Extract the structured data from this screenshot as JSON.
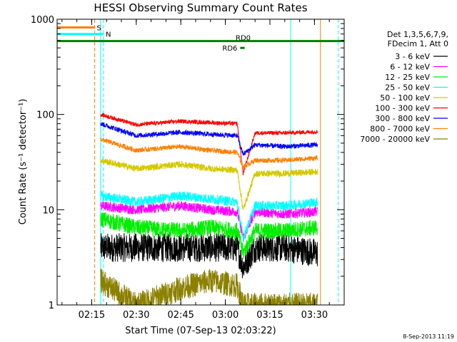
{
  "chart_data": {
    "type": "line",
    "title": "HESSI Observing Summary Count Rates",
    "xlabel": "Start Time (07-Sep-13 02:03:22)",
    "ylabel": "Count Rate (s⁻¹ detector⁻¹)",
    "yscale": "log",
    "ylim": [
      1,
      1000
    ],
    "xlim": [
      "02:03:22",
      "03:40:00"
    ],
    "y_ticks": [
      "1",
      "10",
      "100",
      "1000"
    ],
    "x_ticks": [
      "02:15",
      "02:30",
      "02:45",
      "03:00",
      "03:15",
      "03:30"
    ],
    "footer": "8-Sep-2013 11:19",
    "legend": {
      "placement": "right",
      "header": [
        "Det 1,3,5,6,7,9,",
        "FDecim 1, Att 0"
      ],
      "entries": [
        {
          "label": "3 - 6 keV",
          "color": "#000000"
        },
        {
          "label": "6 - 12 keV",
          "color": "#ff00ff"
        },
        {
          "label": "12 - 25 keV",
          "color": "#00ee00"
        },
        {
          "label": "25 - 50 keV",
          "color": "#00ffff"
        },
        {
          "label": "50 - 100 keV",
          "color": "#d4c800"
        },
        {
          "label": "100 - 300 keV",
          "color": "#ff0000"
        },
        {
          "label": "300 - 800 keV",
          "color": "#0000ff"
        },
        {
          "label": "800 - 7000 keV",
          "color": "#ff8000"
        },
        {
          "label": "7000 - 20000 keV",
          "color": "#8b8000"
        }
      ]
    },
    "flags": [
      {
        "label": "S",
        "color": "#ff8000",
        "y": 820,
        "x": [
          "02:03:22",
          "02:16:00"
        ]
      },
      {
        "label": "N",
        "color": "#00ffff",
        "y": 700,
        "x": [
          "02:03:22",
          "02:19:00"
        ]
      },
      {
        "label": "RD0",
        "color": "#008000",
        "y": 590,
        "x": [
          "02:03:22",
          "03:40:00"
        ]
      },
      {
        "label": "RD6",
        "color": "#008000",
        "y": 500,
        "x": [
          "03:05:00",
          "03:06:30"
        ]
      }
    ],
    "vertical_lines": [
      {
        "t": "02:16:00",
        "color": "#ff8000",
        "style": "dashed"
      },
      {
        "t": "02:18:00",
        "color": "#00ffff",
        "style": "solid"
      },
      {
        "t": "02:19:00",
        "color": "#00ffff",
        "style": "dashed"
      },
      {
        "t": "03:22:00",
        "color": "#00ffff",
        "style": "solid"
      },
      {
        "t": "03:32:00",
        "color": "#ff8000",
        "style": "solid"
      },
      {
        "t": "03:38:00",
        "color": "#00ffff",
        "style": "dashed"
      }
    ],
    "x_times": [
      "02:18:00",
      "02:30:00",
      "02:45:00",
      "02:55:00",
      "03:04:00",
      "03:06:00",
      "03:10:00",
      "03:20:00",
      "03:31:00"
    ],
    "series": [
      {
        "name": "3 - 6 keV",
        "color": "#000000",
        "noise": 0.35,
        "values": [
          4,
          4,
          4,
          4,
          4,
          2.5,
          4,
          4,
          3.5
        ]
      },
      {
        "name": "6 - 12 keV",
        "color": "#ff00ff",
        "noise": 0.12,
        "values": [
          11,
          10,
          11,
          10,
          9.5,
          5,
          9.5,
          9,
          9.5
        ]
      },
      {
        "name": "12 - 25 keV",
        "color": "#00ee00",
        "noise": 0.2,
        "values": [
          8,
          6.5,
          6,
          6.5,
          6,
          3.5,
          6,
          6,
          6.5
        ]
      },
      {
        "name": "25 - 50 keV",
        "color": "#00ffff",
        "noise": 0.12,
        "values": [
          14,
          12,
          14,
          13,
          12,
          5,
          11,
          11,
          12
        ]
      },
      {
        "name": "50 - 100 keV",
        "color": "#d4c800",
        "noise": 0.08,
        "values": [
          33,
          27,
          30,
          27,
          26,
          10,
          24,
          24,
          25
        ]
      },
      {
        "name": "100 - 300 keV",
        "color": "#ff0000",
        "noise": 0.05,
        "values": [
          100,
          78,
          85,
          82,
          80,
          24,
          64,
          64,
          66
        ]
      },
      {
        "name": "300 - 800 keV",
        "color": "#0000ff",
        "noise": 0.06,
        "values": [
          80,
          60,
          65,
          62,
          60,
          38,
          48,
          46,
          48
        ]
      },
      {
        "name": "800 - 7000 keV",
        "color": "#ff8000",
        "noise": 0.06,
        "values": [
          55,
          42,
          46,
          42,
          40,
          28,
          33,
          33,
          35
        ]
      },
      {
        "name": "7000 - 20000 keV",
        "color": "#8b8000",
        "noise": 0.3,
        "values": [
          1.8,
          1,
          1.5,
          1.8,
          1.6,
          1,
          1,
          1,
          1
        ]
      }
    ]
  }
}
